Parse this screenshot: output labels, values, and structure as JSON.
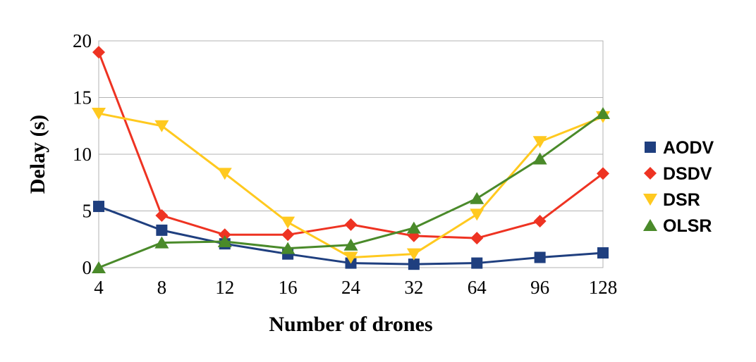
{
  "chart_data": {
    "type": "line",
    "title": "",
    "xlabel": "Number of drones",
    "ylabel": "Delay (s)",
    "categories": [
      "4",
      "8",
      "12",
      "16",
      "24",
      "32",
      "64",
      "96",
      "128"
    ],
    "ylim": [
      0,
      20
    ],
    "yticks": [
      "0",
      "5",
      "10",
      "15",
      "20"
    ],
    "grid": true,
    "legend_position": "right",
    "series": [
      {
        "name": "AODV",
        "color": "#1f3f7f",
        "marker": "square",
        "values": [
          5.4,
          3.3,
          2.1,
          1.2,
          0.4,
          0.3,
          0.4,
          0.9,
          1.3
        ]
      },
      {
        "name": "DSDV",
        "color": "#ee3322",
        "marker": "diamond",
        "values": [
          19.0,
          4.6,
          2.9,
          2.9,
          3.8,
          2.8,
          2.6,
          4.1,
          8.3
        ]
      },
      {
        "name": "DSR",
        "color": "#ffc91f",
        "marker": "triangle-down",
        "values": [
          13.6,
          12.5,
          8.3,
          4.0,
          0.9,
          1.2,
          4.7,
          11.1,
          13.3
        ]
      },
      {
        "name": "OLSR",
        "color": "#4a8a2a",
        "marker": "triangle-up",
        "values": [
          0.0,
          2.2,
          2.3,
          1.7,
          2.0,
          3.5,
          6.1,
          9.6,
          13.6
        ]
      }
    ]
  }
}
